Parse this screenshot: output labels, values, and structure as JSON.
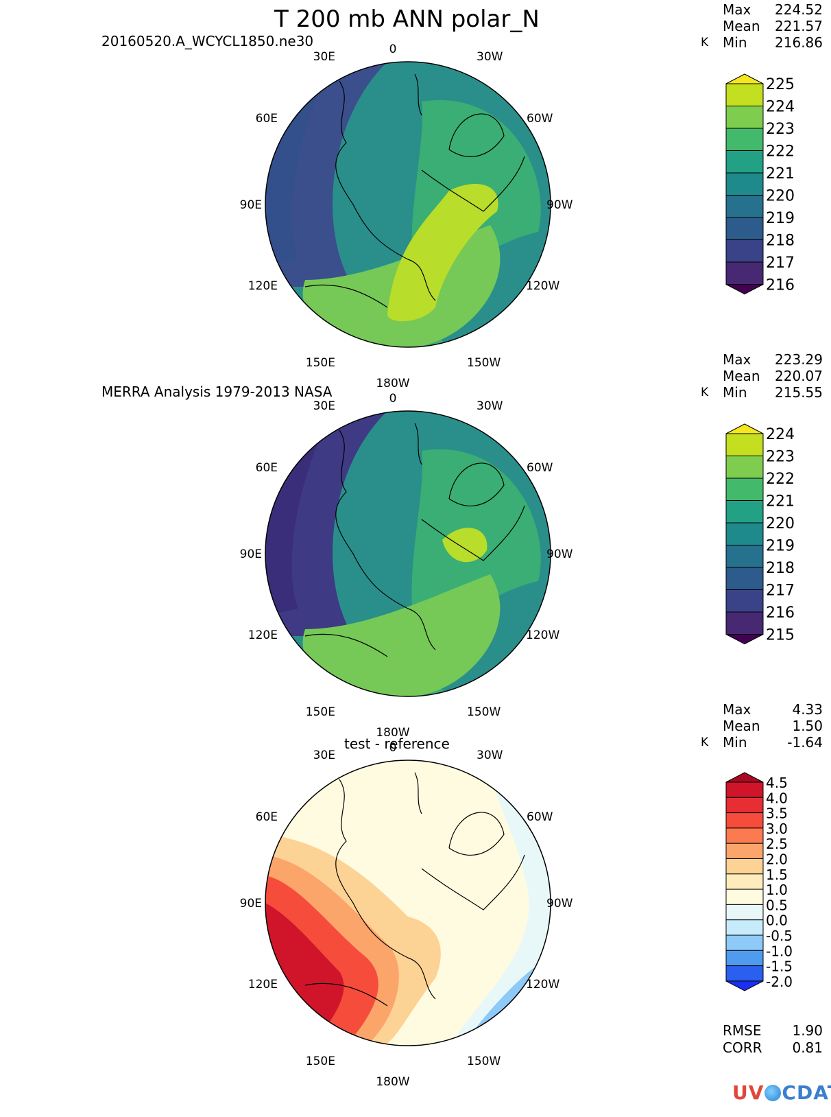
{
  "title": "T 200 mb ANN polar_N",
  "unit": "K",
  "logo": {
    "part1": "UV",
    "part2": "CDAT"
  },
  "panels": [
    {
      "subtitle": "20160520.A_WCYCL1850.ne30",
      "stats": {
        "max_label": "Max",
        "max": "224.52",
        "mean_label": "Mean",
        "mean": "221.57",
        "min_label": "Min",
        "min": "216.86"
      },
      "colorbar": {
        "labels": [
          "225",
          "224",
          "223",
          "222",
          "221",
          "220",
          "219",
          "218",
          "217",
          "216"
        ],
        "colors": [
          "#c3df1f",
          "#7fcd4f",
          "#43b96c",
          "#22a184",
          "#1f8a8c",
          "#26718e",
          "#2d5b8c",
          "#3a4387",
          "#472973"
        ],
        "top_arrow": "#f4e61f",
        "bottom_arrow": "#440154"
      }
    },
    {
      "subtitle": "MERRA Analysis 1979-2013 NASA",
      "stats": {
        "max_label": "Max",
        "max": "223.29",
        "mean_label": "Mean",
        "mean": "220.07",
        "min_label": "Min",
        "min": "215.55"
      },
      "colorbar": {
        "labels": [
          "224",
          "223",
          "222",
          "221",
          "220",
          "219",
          "218",
          "217",
          "216",
          "215"
        ],
        "colors": [
          "#c3df1f",
          "#7fcd4f",
          "#43b96c",
          "#22a184",
          "#1f8a8c",
          "#26718e",
          "#2d5b8c",
          "#3a4387",
          "#472973"
        ],
        "top_arrow": "#f4e61f",
        "bottom_arrow": "#440154"
      }
    },
    {
      "subtitle": "test - reference",
      "stats": {
        "max_label": "Max",
        "max": "4.33",
        "mean_label": "Mean",
        "mean": "1.50",
        "min_label": "Min",
        "min": "-1.64"
      },
      "colorbar": {
        "labels": [
          "4.5",
          "4.0",
          "3.5",
          "3.0",
          "2.5",
          "2.0",
          "1.5",
          "1.0",
          "0.5",
          "0.0",
          "-0.5",
          "-1.0",
          "-1.5",
          "-2.0"
        ],
        "colors": [
          "#d0152a",
          "#e62e33",
          "#f64c3c",
          "#fb7a4f",
          "#fca56b",
          "#fdd295",
          "#feecbd",
          "#fffbe0",
          "#e8f8f8",
          "#c6ecfb",
          "#8dcaf7",
          "#4e9bf0",
          "#2a5ff0"
        ],
        "top_arrow": "#a80a22",
        "bottom_arrow": "#1a2ff0"
      },
      "extra_stats": {
        "rmse_label": "RMSE",
        "rmse": "1.90",
        "corr_label": "CORR",
        "corr": "0.81"
      }
    }
  ],
  "map_labels": {
    "top": "0",
    "bottom": "180W",
    "upper_left": "30E",
    "upper_right": "30W",
    "left_upper": "60E",
    "right_upper": "60W",
    "left": "90E",
    "right": "90W",
    "left_lower": "120E",
    "right_lower": "120W",
    "lower_left": "150E",
    "lower_right": "150W"
  }
}
